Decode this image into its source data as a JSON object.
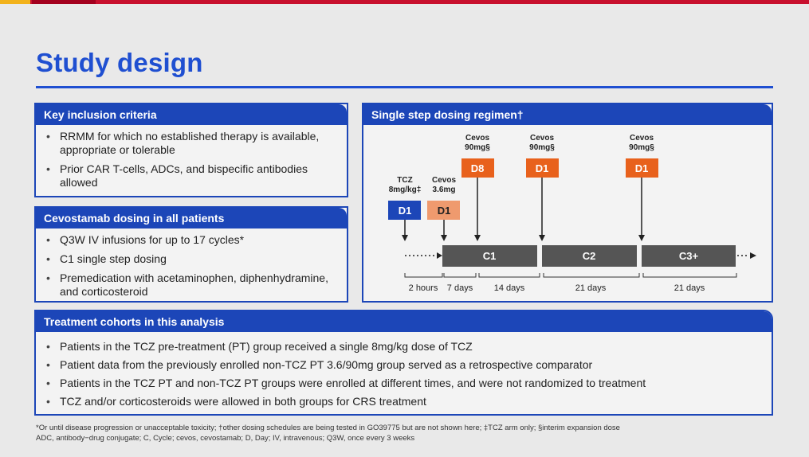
{
  "title": "Study design",
  "inclusion": {
    "header": "Key inclusion criteria",
    "items": [
      "RRMM for which no established therapy is available, appropriate or tolerable",
      "Prior CAR T-cells, ADCs, and bispecific antibodies allowed"
    ]
  },
  "dosing": {
    "header": "Cevostamab dosing in all patients",
    "items": [
      "Q3W IV infusions for up to 17 cycles*",
      "C1 single step dosing",
      "Premedication with acetaminophen, diphenhydramine, and corticosteroid"
    ]
  },
  "regimen": {
    "header": "Single step dosing regimen†",
    "doses": [
      {
        "label_top": "TCZ",
        "label_bottom": "8mg/kg‡",
        "box": "D1",
        "color": "#1c46b8"
      },
      {
        "label_top": "Cevos",
        "label_bottom": "3.6mg",
        "box": "D1",
        "color": "#ef9a6e"
      },
      {
        "label_top": "Cevos",
        "label_bottom": "90mg§",
        "box": "D8",
        "color": "#e8611c"
      },
      {
        "label_top": "Cevos",
        "label_bottom": "90mg§",
        "box": "D1",
        "color": "#e8611c"
      },
      {
        "label_top": "Cevos",
        "label_bottom": "90mg§",
        "box": "D1",
        "color": "#e8611c"
      }
    ],
    "cycles": [
      "C1",
      "C2",
      "C3+"
    ],
    "durations": [
      "2 hours",
      "7 days",
      "14 days",
      "21 days",
      "21 days"
    ],
    "cycle_color": "#555555"
  },
  "cohorts": {
    "header": "Treatment cohorts in this analysis",
    "items": [
      "Patients in the TCZ pre-treatment (PT) group received a single 8mg/kg dose of TCZ",
      "Patient data from the previously enrolled non-TCZ PT 3.6/90mg group served as a retrospective comparator",
      "Patients in the TCZ PT and non-TCZ PT groups were enrolled at different times, and were not randomized to treatment",
      "TCZ and/or corticosteroids were allowed in both groups for CRS treatment"
    ]
  },
  "footnotes": {
    "line1": "*Or until disease progression or unacceptable toxicity; †other dosing schedules are being tested in GO39775 but are not shown here; ‡TCZ arm only; §interim expansion dose",
    "line2": "ADC, antibody−drug conjugate; C, Cycle; cevos, cevostamab; D, Day; IV, intravenous; Q3W, once every 3 weeks"
  },
  "colors": {
    "accent": "#1f4fd1",
    "panel_header": "#1c46b8",
    "top_bar": "#c8102e"
  }
}
